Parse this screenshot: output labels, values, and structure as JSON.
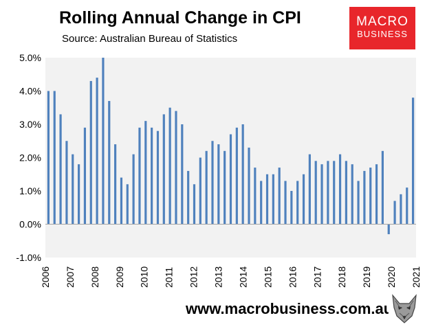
{
  "header": {
    "title": "Rolling Annual Change in CPI",
    "subtitle": "Source: Australian Bureau of Statistics"
  },
  "logo": {
    "line1": "MACRO",
    "line2": "BUSINESS"
  },
  "footer": {
    "url": "www.macrobusiness.com.au",
    "mascot_icon": "wolf-icon"
  },
  "colors": {
    "bar": "#4f81bd",
    "plot_bg": "#f2f2f2",
    "logo_bg": "#e8262b"
  },
  "chart_data": {
    "type": "bar",
    "title": "Rolling Annual Change in CPI",
    "subtitle": "Source: Australian Bureau of Statistics",
    "xlabel": "",
    "ylabel": "",
    "ylim": [
      -1.0,
      5.0
    ],
    "yticks": [
      "-1.0%",
      "0.0%",
      "1.0%",
      "2.0%",
      "3.0%",
      "4.0%",
      "5.0%"
    ],
    "xtick_labels": [
      "2006",
      "2007",
      "2008",
      "2009",
      "2010",
      "2011",
      "2012",
      "2013",
      "2014",
      "2015",
      "2016",
      "2017",
      "2018",
      "2019",
      "2020",
      "2021"
    ],
    "grid": false,
    "series": [
      {
        "name": "Rolling annual change in CPI (%)",
        "values": [
          4.0,
          4.0,
          3.3,
          2.5,
          2.1,
          1.8,
          2.9,
          4.3,
          4.4,
          5.0,
          3.7,
          2.4,
          1.4,
          1.2,
          2.1,
          2.9,
          3.1,
          2.9,
          2.8,
          3.3,
          3.5,
          3.4,
          3.0,
          1.6,
          1.2,
          2.0,
          2.2,
          2.5,
          2.4,
          2.2,
          2.7,
          2.9,
          3.0,
          2.3,
          1.7,
          1.3,
          1.5,
          1.5,
          1.7,
          1.3,
          1.0,
          1.3,
          1.5,
          2.1,
          1.9,
          1.8,
          1.9,
          1.9,
          2.1,
          1.9,
          1.8,
          1.3,
          1.6,
          1.7,
          1.8,
          2.2,
          -0.3,
          0.7,
          0.9,
          1.1,
          3.8
        ]
      }
    ]
  }
}
